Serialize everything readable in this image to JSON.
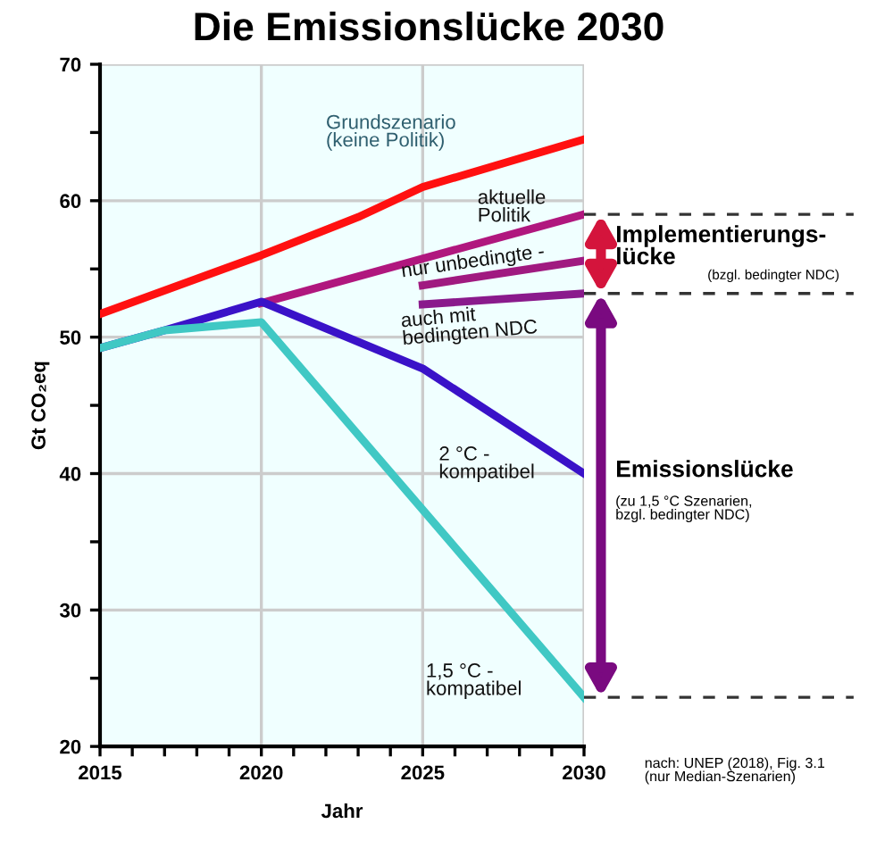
{
  "chart_data": {
    "type": "line",
    "title": "Die Emissionslücke 2030",
    "xlabel": "Jahr",
    "ylabel": "Gt CO₂eq",
    "xlim": [
      2015,
      2030
    ],
    "ylim": [
      20,
      70
    ],
    "xticks": [
      2015,
      {
        "value": 2016,
        "label": null
      },
      {
        "value": 2017,
        "label": null
      },
      {
        "value": 2018,
        "label": null
      },
      {
        "value": 2019,
        "label": null
      },
      2020,
      {
        "value": 2021,
        "label": null
      },
      {
        "value": 2022,
        "label": null
      },
      {
        "value": 2023,
        "label": null
      },
      {
        "value": 2024,
        "label": null
      },
      2025,
      {
        "value": 2026,
        "label": null
      },
      {
        "value": 2027,
        "label": null
      },
      {
        "value": 2028,
        "label": null
      },
      {
        "value": 2029,
        "label": null
      },
      2030
    ],
    "yticks": [
      20,
      {
        "value": 25,
        "label": null
      },
      30,
      {
        "value": 35,
        "label": null
      },
      40,
      {
        "value": 45,
        "label": null
      },
      50,
      {
        "value": 55,
        "label": null
      },
      60,
      {
        "value": 65,
        "label": null
      },
      70
    ],
    "grid": true,
    "legend": false,
    "marker": "none",
    "line_style": "solid",
    "series": [
      {
        "name": "Grundszenario\n(keine Politik)",
        "color": "#ff1010",
        "x": [
          2015,
          2020,
          2023,
          2025,
          2030
        ],
        "values": [
          51.7,
          56.0,
          58.8,
          61.0,
          64.5
        ]
      },
      {
        "name": "aktuelle\nPolitik",
        "color": "#b0177e",
        "x": [
          2020,
          2030
        ],
        "values": [
          52.5,
          59.0
        ]
      },
      {
        "name": "nur unbedingte -",
        "color": "#a01a80",
        "x": [
          2025,
          2030
        ],
        "values": [
          53.8,
          55.6
        ]
      },
      {
        "name": "auch mit\nbedingten NDC",
        "color": "#8a1a8c",
        "x": [
          2025,
          2030
        ],
        "values": [
          52.4,
          53.2
        ]
      },
      {
        "name": "2 °C -\nkompatibel",
        "color": "#3a12c8",
        "x": [
          2015,
          2017,
          2020,
          2025,
          2030
        ],
        "values": [
          49.2,
          50.5,
          52.6,
          47.7,
          40.0
        ]
      },
      {
        "name": "1,5 °C -\nkompatibel",
        "color": "#40c8c4",
        "x": [
          2015,
          2017,
          2020,
          2030
        ],
        "values": [
          49.2,
          50.5,
          51.1,
          23.6
        ]
      }
    ],
    "annotations": [
      "Implementierungs-\nlücke",
      "(bzgl. bedingter NDC)",
      "Emissionslücke",
      "(zu 1,5 °C Szenarien,\nbzgl. bedingter NDC)",
      "nach: UNEP (2018), Fig. 3.1\n(nur Median-Szenarien)"
    ]
  }
}
